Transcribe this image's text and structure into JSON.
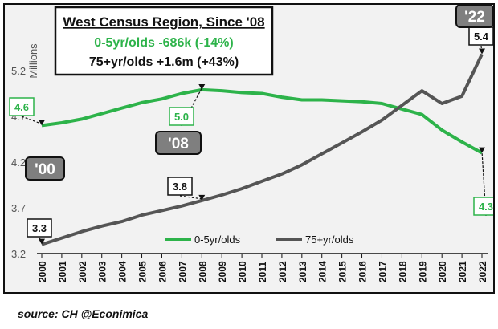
{
  "chart_data": {
    "type": "line",
    "title": "West Census Region, Since '08",
    "subtitle_lines": [
      {
        "text": "0-5yr/olds -686k (-14%)",
        "color": "#2db34a"
      },
      {
        "text": "75+yr/olds +1.6m (+43%)",
        "color": "#111111"
      }
    ],
    "ylabel": "Millions",
    "ylim": [
      3.2,
      5.2
    ],
    "yticks": [
      "3.2",
      "3.7",
      "4.2",
      "4.7",
      "5.2"
    ],
    "yticks_values": [
      3.2,
      3.7,
      4.2,
      4.7,
      5.2
    ],
    "x": [
      "2000",
      "2001",
      "2002",
      "2003",
      "2004",
      "2005",
      "2006",
      "2007",
      "2008",
      "2009",
      "2010",
      "2011",
      "2012",
      "2013",
      "2014",
      "2015",
      "2016",
      "2017",
      "2018",
      "2019",
      "2020",
      "2021",
      "2022"
    ],
    "series": [
      {
        "name": "0-5yr/olds",
        "color": "#2db34a",
        "values": [
          4.6,
          4.63,
          4.67,
          4.73,
          4.79,
          4.85,
          4.89,
          4.95,
          4.99,
          4.98,
          4.96,
          4.95,
          4.91,
          4.88,
          4.88,
          4.87,
          4.86,
          4.84,
          4.78,
          4.72,
          4.55,
          4.42,
          4.3
        ]
      },
      {
        "name": "75+yr/olds",
        "color": "#555555",
        "values": [
          3.3,
          3.37,
          3.44,
          3.5,
          3.55,
          3.62,
          3.67,
          3.72,
          3.78,
          3.84,
          3.91,
          3.99,
          4.07,
          4.17,
          4.29,
          4.41,
          4.53,
          4.66,
          4.82,
          4.98,
          4.84,
          4.92,
          5.38
        ]
      }
    ],
    "legend": {
      "placement": "bottom-center"
    },
    "grid": false,
    "annotations": {
      "green": [
        {
          "label": "4.6",
          "x": "2000"
        },
        {
          "label": "5.0",
          "x": "2008"
        },
        {
          "label": "4.3",
          "x": "2022"
        }
      ],
      "dark": [
        {
          "label": "3.3",
          "x": "2000"
        },
        {
          "label": "3.8",
          "x": "2008"
        },
        {
          "label": "5.4",
          "x": "2022"
        }
      ],
      "years": [
        {
          "label": "'00"
        },
        {
          "label": "'08"
        },
        {
          "label": "'22"
        }
      ]
    }
  },
  "source_text": "source: CH  @Econimica"
}
